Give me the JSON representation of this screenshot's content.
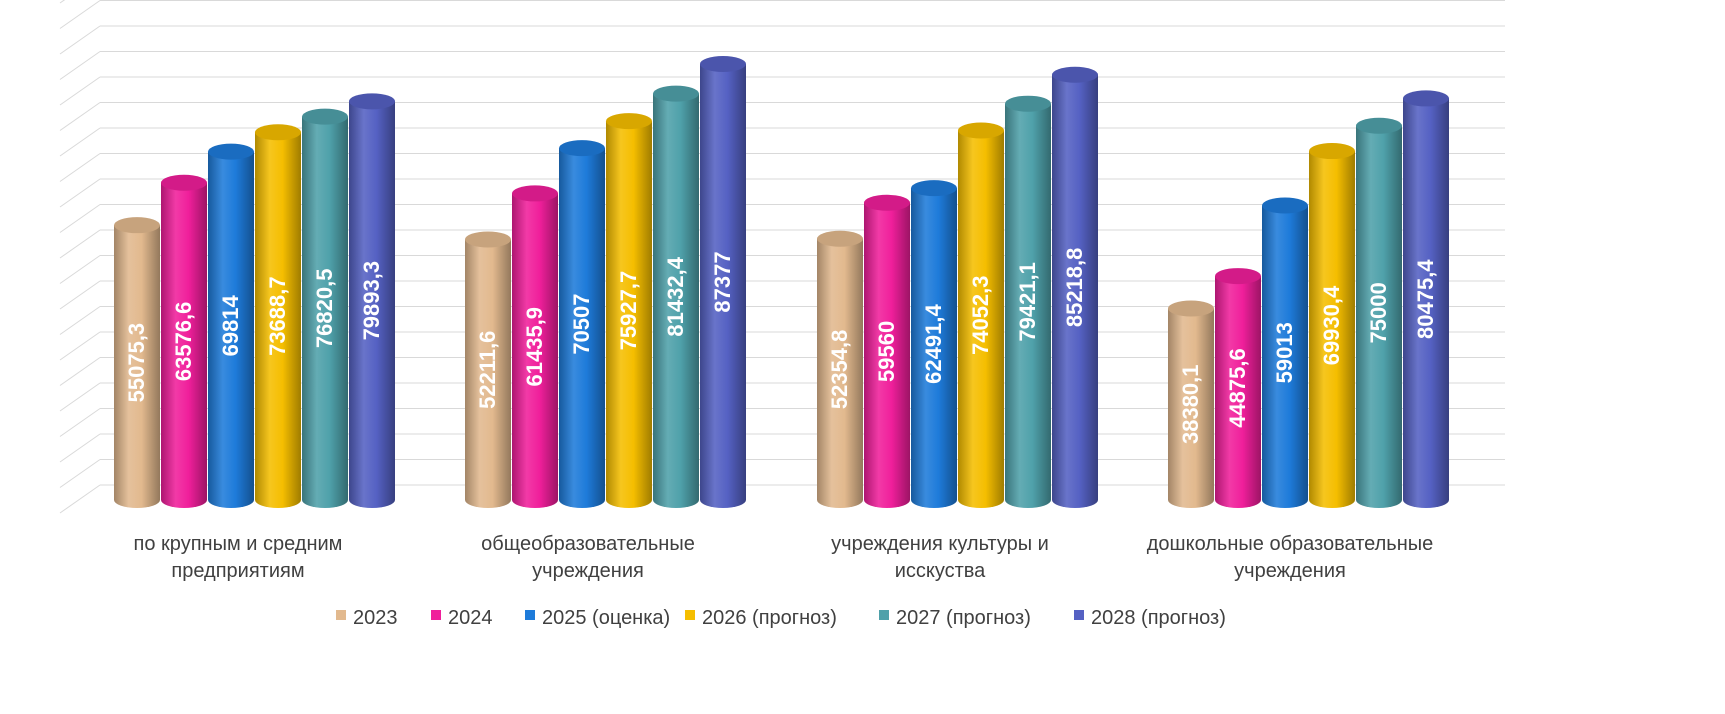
{
  "chart_data": {
    "type": "bar",
    "style": "3d-cylinder",
    "title": "",
    "xlabel": "",
    "ylabel": "",
    "ylim": [
      0,
      95000
    ],
    "grid": true,
    "legend_position": "bottom",
    "categories": [
      [
        "по крупным и средним",
        "предприятиям"
      ],
      [
        "общеобразовательные",
        "учреждения"
      ],
      [
        "учреждения культуры и",
        "исскуства"
      ],
      [
        "дошкольные образовательные",
        "учреждения"
      ]
    ],
    "series": [
      {
        "name": "2023",
        "color": "#E2B98E",
        "values": [
          55075.3,
          52211.6,
          52354.8,
          38380.1
        ],
        "labels": [
          "55075,3",
          "52211,6",
          "52354,8",
          "38380,1"
        ]
      },
      {
        "name": "2024",
        "color": "#F01F9B",
        "values": [
          63576.6,
          61435.9,
          59560,
          44875.6
        ],
        "labels": [
          "63576,6",
          "61435,9",
          "59560",
          "44875,6"
        ]
      },
      {
        "name": "2025 (оценка)",
        "color": "#1E7BDA",
        "values": [
          69814,
          70507,
          62491.4,
          59013
        ],
        "labels": [
          "69814",
          "70507",
          "62491,4",
          "59013"
        ]
      },
      {
        "name": "2026 (прогноз)",
        "color": "#F5BE00",
        "values": [
          73688.7,
          75927.7,
          74052.3,
          69930.4
        ],
        "labels": [
          "73688,7",
          "75927,7",
          "74052,3",
          "69930,4"
        ]
      },
      {
        "name": "2027 (прогноз)",
        "color": "#4FA1AA",
        "values": [
          76820.5,
          81432.4,
          79421.1,
          75000
        ],
        "labels": [
          "76820,5",
          "81432,4",
          "79421,1",
          "75000"
        ]
      },
      {
        "name": "2028 (прогноз)",
        "color": "#5561C3",
        "values": [
          79893.3,
          87377,
          85218.8,
          80475.4
        ],
        "labels": [
          "79893,3",
          "87377",
          "85218,8",
          "80475,4"
        ]
      }
    ]
  }
}
